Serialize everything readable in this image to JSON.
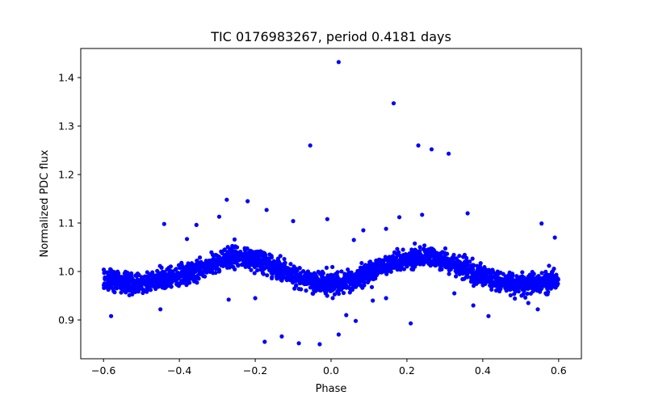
{
  "chart_data": {
    "type": "scatter",
    "title": "TIC 0176983267, period 0.4181 days",
    "xlabel": "Phase",
    "ylabel": "Normalized PDC flux",
    "xlim": [
      -0.66,
      0.66
    ],
    "ylim": [
      0.82,
      1.46
    ],
    "x_ticks": [
      -0.6,
      -0.4,
      -0.2,
      0.0,
      0.2,
      0.4,
      0.6
    ],
    "x_tick_labels": [
      "−0.6",
      "−0.4",
      "−0.2",
      "0.0",
      "0.2",
      "0.4",
      "0.6"
    ],
    "y_ticks": [
      0.9,
      1.0,
      1.1,
      1.2,
      1.3,
      1.4
    ],
    "y_tick_labels": [
      "0.9",
      "1.0",
      "1.1",
      "1.2",
      "1.3",
      "1.4"
    ],
    "grid": false,
    "legend": "none",
    "marker_color": "#0000ff",
    "series": [
      {
        "description": "Folded light curve, sinusoidal baseline with about 2 cycles across phase -0.6 to 0.6; amplitude about 0.03; maxima near phase -0.25 and 0.22 (flux about 1.03), minima near -0.55, 0.0 and 0.5 (flux about 0.975); scatter about ±0.02",
        "baseline": [
          {
            "x": -0.6,
            "y": 0.985
          },
          {
            "x": -0.55,
            "y": 0.978
          },
          {
            "x": -0.5,
            "y": 0.975
          },
          {
            "x": -0.45,
            "y": 0.982
          },
          {
            "x": -0.4,
            "y": 0.99
          },
          {
            "x": -0.35,
            "y": 1.005
          },
          {
            "x": -0.3,
            "y": 1.02
          },
          {
            "x": -0.25,
            "y": 1.03
          },
          {
            "x": -0.2,
            "y": 1.025
          },
          {
            "x": -0.15,
            "y": 1.01
          },
          {
            "x": -0.1,
            "y": 0.99
          },
          {
            "x": -0.05,
            "y": 0.978
          },
          {
            "x": 0.0,
            "y": 0.975
          },
          {
            "x": 0.05,
            "y": 0.982
          },
          {
            "x": 0.1,
            "y": 0.998
          },
          {
            "x": 0.15,
            "y": 1.015
          },
          {
            "x": 0.2,
            "y": 1.028
          },
          {
            "x": 0.25,
            "y": 1.03
          },
          {
            "x": 0.3,
            "y": 1.022
          },
          {
            "x": 0.35,
            "y": 1.008
          },
          {
            "x": 0.4,
            "y": 0.99
          },
          {
            "x": 0.45,
            "y": 0.978
          },
          {
            "x": 0.5,
            "y": 0.975
          },
          {
            "x": 0.55,
            "y": 0.978
          },
          {
            "x": 0.6,
            "y": 0.985
          }
        ],
        "outliers": [
          {
            "x": 0.02,
            "y": 1.432
          },
          {
            "x": 0.165,
            "y": 1.347
          },
          {
            "x": -0.055,
            "y": 1.26
          },
          {
            "x": 0.23,
            "y": 1.26
          },
          {
            "x": 0.265,
            "y": 1.252
          },
          {
            "x": 0.31,
            "y": 1.243
          },
          {
            "x": -0.275,
            "y": 1.148
          },
          {
            "x": -0.22,
            "y": 1.145
          },
          {
            "x": -0.17,
            "y": 1.127
          },
          {
            "x": -0.295,
            "y": 1.113
          },
          {
            "x": 0.36,
            "y": 1.12
          },
          {
            "x": 0.18,
            "y": 1.112
          },
          {
            "x": 0.24,
            "y": 1.117
          },
          {
            "x": -0.44,
            "y": 1.098
          },
          {
            "x": -0.355,
            "y": 1.096
          },
          {
            "x": -0.1,
            "y": 1.104
          },
          {
            "x": -0.01,
            "y": 1.108
          },
          {
            "x": 0.085,
            "y": 1.085
          },
          {
            "x": 0.145,
            "y": 1.088
          },
          {
            "x": 0.555,
            "y": 1.099
          },
          {
            "x": -0.38,
            "y": 1.067
          },
          {
            "x": 0.06,
            "y": 1.065
          },
          {
            "x": 0.59,
            "y": 1.07
          },
          {
            "x": -0.58,
            "y": 0.908
          },
          {
            "x": -0.45,
            "y": 0.922
          },
          {
            "x": 0.04,
            "y": 0.91
          },
          {
            "x": 0.375,
            "y": 0.93
          },
          {
            "x": 0.415,
            "y": 0.908
          },
          {
            "x": 0.545,
            "y": 0.922
          },
          {
            "x": 0.21,
            "y": 0.893
          },
          {
            "x": 0.02,
            "y": 0.87
          },
          {
            "x": -0.13,
            "y": 0.866
          },
          {
            "x": -0.175,
            "y": 0.855
          },
          {
            "x": -0.085,
            "y": 0.852
          },
          {
            "x": -0.03,
            "y": 0.85
          },
          {
            "x": 0.065,
            "y": 0.898
          },
          {
            "x": 0.11,
            "y": 0.94
          },
          {
            "x": -0.27,
            "y": 0.942
          },
          {
            "x": -0.2,
            "y": 0.945
          },
          {
            "x": 0.145,
            "y": 0.945
          },
          {
            "x": 0.325,
            "y": 0.955
          },
          {
            "x": 0.52,
            "y": 0.935
          }
        ]
      }
    ]
  }
}
